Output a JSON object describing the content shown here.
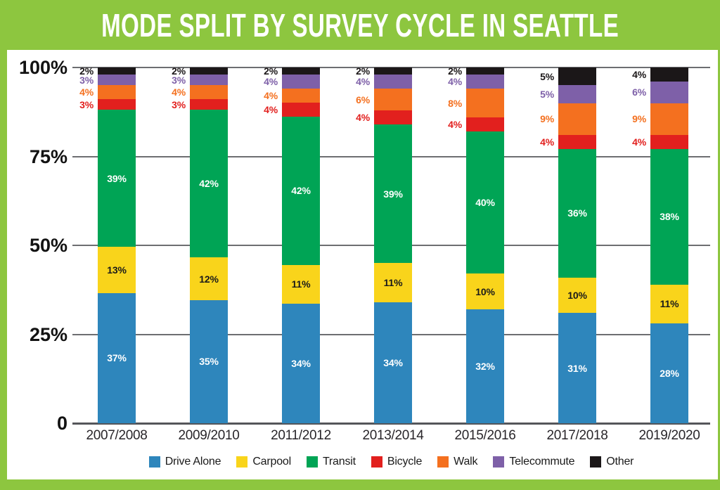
{
  "banner": {
    "title": "MODE SPLIT BY SURVEY CYCLE IN SEATTLE"
  },
  "colors": {
    "banner_green": "#8DC63F",
    "card_bg": "#FFFFFF",
    "gridline": "#6D6E71",
    "axis_line": "#55565A",
    "axis_text": "#121212",
    "x_label_text": "#29262A",
    "drive_alone": "#2E86BC",
    "carpool": "#F9D41B",
    "transit": "#00A455",
    "bicycle": "#E2201E",
    "walk": "#F4701F",
    "telecommute": "#7E60A8",
    "other": "#1B1718"
  },
  "y_axis": {
    "tick_labels": [
      "100%",
      "75%",
      "50%",
      "25%",
      "0"
    ],
    "tick_values": [
      100,
      75,
      50,
      25,
      0
    ]
  },
  "legend": [
    {
      "key": "drive_alone",
      "label": "Drive Alone"
    },
    {
      "key": "carpool",
      "label": "Carpool"
    },
    {
      "key": "transit",
      "label": "Transit"
    },
    {
      "key": "bicycle",
      "label": "Bicycle"
    },
    {
      "key": "walk",
      "label": "Walk"
    },
    {
      "key": "telecommute",
      "label": "Telecommute"
    },
    {
      "key": "other",
      "label": "Other"
    }
  ],
  "chart_data": {
    "type": "bar",
    "stacked": true,
    "title": "MODE SPLIT BY SURVEY CYCLE IN SEATTLE",
    "xlabel": "",
    "ylabel": "",
    "ylim": [
      0,
      100
    ],
    "ytick_values": [
      0,
      25,
      50,
      75,
      100
    ],
    "grid": true,
    "legend_position": "bottom",
    "categories": [
      "2007/2008",
      "2009/2010",
      "2011/2012",
      "2013/2014",
      "2015/2016",
      "2017/2018",
      "2019/2020"
    ],
    "series": [
      {
        "name": "Drive Alone",
        "key": "drive_alone",
        "label_style": "inside",
        "label_color": "#FFFFFF",
        "values": [
          37,
          35,
          34,
          34,
          32,
          31,
          28
        ]
      },
      {
        "name": "Carpool",
        "key": "carpool",
        "label_style": "inside",
        "label_color": "#1A1A1A",
        "values": [
          13,
          12,
          11,
          11,
          10,
          10,
          11
        ]
      },
      {
        "name": "Transit",
        "key": "transit",
        "label_style": "inside",
        "label_color": "#FFFFFF",
        "values": [
          39,
          42,
          42,
          39,
          40,
          36,
          38
        ]
      },
      {
        "name": "Bicycle",
        "key": "bicycle",
        "label_style": "outside",
        "values": [
          3,
          3,
          4,
          4,
          4,
          4,
          4
        ]
      },
      {
        "name": "Walk",
        "key": "walk",
        "label_style": "outside",
        "values": [
          4,
          4,
          4,
          6,
          8,
          9,
          9
        ]
      },
      {
        "name": "Telecommute",
        "key": "telecommute",
        "label_style": "outside",
        "values": [
          3,
          3,
          4,
          4,
          4,
          5,
          6
        ]
      },
      {
        "name": "Other",
        "key": "other",
        "label_style": "outside",
        "values": [
          2,
          2,
          2,
          2,
          2,
          5,
          4
        ]
      }
    ]
  }
}
